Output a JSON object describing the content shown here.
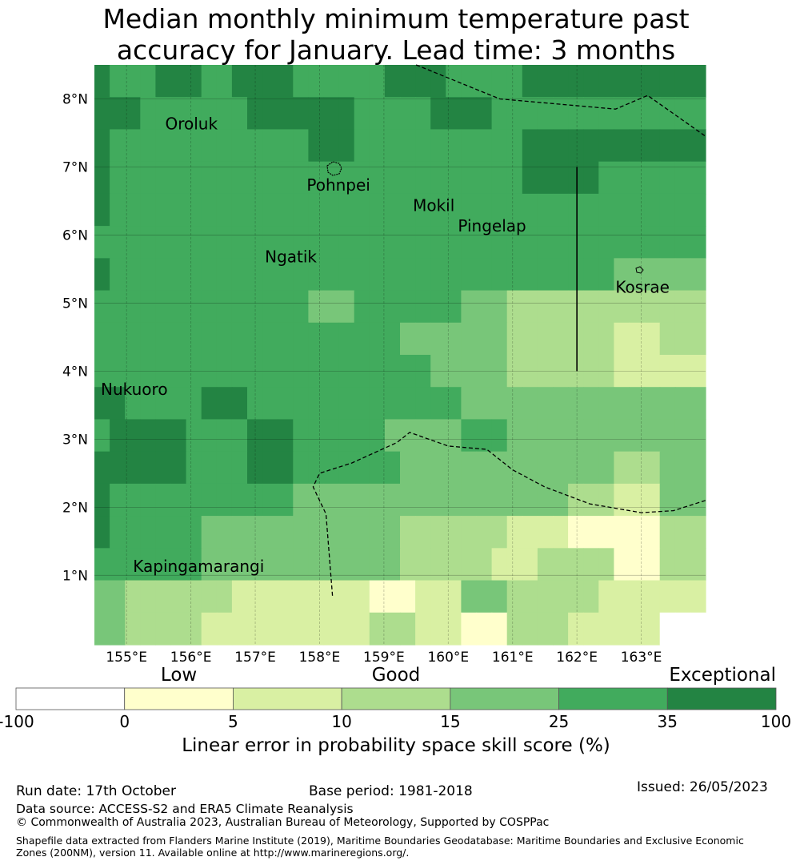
{
  "title": {
    "line1": "Median monthly minimum temperature past",
    "line2": "accuracy for January. Lead time: 3 months"
  },
  "map": {
    "lon_range": [
      154.5,
      164.0
    ],
    "lat_range": [
      -0.02,
      8.5
    ],
    "grid_rows": [
      [
        6,
        5,
        5,
        5,
        6,
        6,
        6,
        5,
        5,
        6,
        6,
        6,
        6,
        5,
        5,
        5,
        5,
        5,
        5,
        6,
        6,
        6,
        6,
        5,
        5,
        5,
        5,
        5,
        6,
        6,
        6,
        6,
        6,
        6,
        6,
        6,
        6,
        6,
        6,
        6
      ],
      [
        6,
        6,
        6,
        5,
        5,
        5,
        5,
        5,
        5,
        5,
        6,
        6,
        6,
        6,
        6,
        6,
        6,
        5,
        5,
        5,
        5,
        5,
        6,
        6,
        6,
        6,
        5,
        5,
        5,
        5,
        5,
        5,
        5,
        5,
        5,
        5,
        5,
        5,
        5,
        5
      ],
      [
        6,
        5,
        5,
        5,
        5,
        5,
        5,
        5,
        5,
        5,
        5,
        5,
        5,
        5,
        6,
        6,
        6,
        5,
        5,
        5,
        5,
        5,
        5,
        5,
        5,
        5,
        5,
        5,
        6,
        6,
        6,
        6,
        6,
        6,
        6,
        6,
        6,
        6,
        6,
        6
      ],
      [
        6,
        5,
        5,
        5,
        5,
        5,
        5,
        5,
        5,
        5,
        5,
        5,
        5,
        5,
        5,
        5,
        5,
        5,
        5,
        5,
        5,
        5,
        5,
        5,
        5,
        5,
        5,
        5,
        6,
        6,
        6,
        6,
        6,
        5,
        5,
        5,
        5,
        5,
        5,
        5
      ],
      [
        6,
        5,
        5,
        5,
        5,
        5,
        5,
        5,
        5,
        5,
        5,
        5,
        5,
        5,
        5,
        5,
        5,
        5,
        5,
        5,
        5,
        5,
        5,
        5,
        5,
        5,
        5,
        5,
        5,
        5,
        5,
        5,
        5,
        5,
        5,
        5,
        5,
        5,
        5,
        5
      ],
      [
        5,
        5,
        5,
        5,
        5,
        5,
        5,
        5,
        5,
        5,
        5,
        5,
        5,
        5,
        5,
        5,
        5,
        5,
        5,
        5,
        5,
        5,
        5,
        5,
        5,
        5,
        5,
        5,
        5,
        5,
        5,
        5,
        5,
        5,
        5,
        5,
        5,
        5,
        5,
        5
      ],
      [
        6,
        5,
        5,
        5,
        5,
        5,
        5,
        5,
        5,
        5,
        5,
        5,
        5,
        5,
        5,
        5,
        5,
        5,
        5,
        5,
        5,
        5,
        5,
        5,
        5,
        5,
        5,
        5,
        5,
        5,
        5,
        5,
        5,
        5,
        4,
        4,
        4,
        4,
        4,
        4
      ],
      [
        5,
        5,
        5,
        5,
        5,
        5,
        5,
        5,
        5,
        5,
        5,
        5,
        5,
        5,
        4,
        4,
        4,
        5,
        5,
        5,
        5,
        5,
        5,
        5,
        4,
        4,
        4,
        3,
        3,
        3,
        3,
        3,
        3,
        3,
        3,
        3,
        3,
        3,
        3,
        3
      ],
      [
        5,
        5,
        5,
        5,
        5,
        5,
        5,
        5,
        5,
        5,
        5,
        5,
        5,
        5,
        5,
        5,
        5,
        5,
        5,
        5,
        4,
        4,
        4,
        4,
        4,
        4,
        4,
        3,
        3,
        3,
        3,
        3,
        3,
        3,
        2,
        2,
        2,
        3,
        3,
        3
      ],
      [
        5,
        5,
        5,
        5,
        5,
        5,
        5,
        5,
        5,
        5,
        5,
        5,
        5,
        5,
        5,
        5,
        5,
        5,
        5,
        5,
        5,
        5,
        4,
        4,
        4,
        4,
        4,
        3,
        3,
        3,
        3,
        3,
        3,
        3,
        2,
        2,
        2,
        2,
        2,
        2
      ],
      [
        6,
        6,
        5,
        5,
        5,
        5,
        5,
        6,
        6,
        6,
        5,
        5,
        5,
        5,
        5,
        5,
        5,
        5,
        5,
        5,
        5,
        5,
        5,
        5,
        4,
        4,
        4,
        4,
        4,
        4,
        4,
        4,
        4,
        4,
        4,
        4,
        4,
        4,
        4,
        4
      ],
      [
        5,
        6,
        6,
        6,
        6,
        6,
        5,
        5,
        5,
        5,
        6,
        6,
        6,
        5,
        5,
        5,
        5,
        5,
        5,
        4,
        4,
        4,
        4,
        4,
        5,
        5,
        5,
        4,
        4,
        4,
        4,
        4,
        4,
        4,
        4,
        4,
        4,
        4,
        4,
        4
      ],
      [
        6,
        6,
        6,
        6,
        6,
        6,
        5,
        5,
        5,
        5,
        6,
        6,
        6,
        5,
        5,
        5,
        5,
        5,
        5,
        5,
        4,
        4,
        4,
        4,
        4,
        4,
        4,
        4,
        4,
        4,
        4,
        4,
        4,
        4,
        3,
        3,
        3,
        4,
        4,
        4
      ],
      [
        6,
        5,
        5,
        5,
        5,
        5,
        5,
        5,
        5,
        5,
        5,
        5,
        5,
        4,
        4,
        4,
        4,
        4,
        4,
        4,
        4,
        4,
        4,
        4,
        4,
        4,
        4,
        4,
        4,
        4,
        4,
        3,
        3,
        3,
        2,
        2,
        2,
        4,
        4,
        4
      ],
      [
        6,
        5,
        5,
        5,
        5,
        5,
        5,
        4,
        4,
        4,
        4,
        4,
        4,
        4,
        4,
        4,
        4,
        4,
        4,
        4,
        3,
        3,
        3,
        3,
        3,
        3,
        3,
        2,
        2,
        2,
        2,
        1,
        1,
        1,
        1,
        1,
        1,
        3,
        3,
        3
      ],
      [
        5,
        5,
        5,
        5,
        5,
        5,
        5,
        4,
        4,
        4,
        4,
        4,
        4,
        4,
        4,
        4,
        4,
        4,
        4,
        4,
        3,
        3,
        3,
        3,
        3,
        3,
        2,
        2,
        2,
        3,
        3,
        3,
        3,
        3,
        1,
        1,
        1,
        3,
        3,
        3
      ],
      [
        4,
        4,
        3,
        3,
        3,
        3,
        3,
        3,
        3,
        2,
        2,
        2,
        2,
        2,
        2,
        2,
        2,
        2,
        1,
        1,
        1,
        2,
        2,
        2,
        4,
        4,
        4,
        3,
        3,
        3,
        3,
        3,
        3,
        2,
        2,
        2,
        2,
        2,
        2,
        2
      ],
      [
        4,
        4,
        3,
        3,
        3,
        3,
        3,
        2,
        2,
        2,
        2,
        2,
        2,
        2,
        2,
        2,
        2,
        2,
        3,
        3,
        3,
        2,
        2,
        2,
        1,
        1,
        1,
        3,
        3,
        3,
        3,
        2,
        2,
        2,
        2,
        2,
        2,
        0,
        0,
        0
      ]
    ],
    "place_labels": [
      {
        "name": "Oroluk",
        "lon": 155.6,
        "lat": 7.55
      },
      {
        "name": "Pohnpei",
        "lon": 157.8,
        "lat": 6.65
      },
      {
        "name": "Mokil",
        "lon": 159.45,
        "lat": 6.35
      },
      {
        "name": "Pingelap",
        "lon": 160.15,
        "lat": 6.05
      },
      {
        "name": "Ngatik",
        "lon": 157.15,
        "lat": 5.6
      },
      {
        "name": "Kosrae",
        "lon": 162.6,
        "lat": 5.15
      },
      {
        "name": "Nukuoro",
        "lon": 154.6,
        "lat": 3.65
      },
      {
        "name": "Kapingamarangi",
        "lon": 155.1,
        "lat": 1.05
      }
    ],
    "x_ticks": [
      "155°E",
      "156°E",
      "157°E",
      "158°E",
      "159°E",
      "160°E",
      "161°E",
      "162°E",
      "163°E"
    ],
    "x_tick_values": [
      155,
      156,
      157,
      158,
      159,
      160,
      161,
      162,
      163
    ],
    "y_ticks": [
      "1°N",
      "2°N",
      "3°N",
      "4°N",
      "5°N",
      "6°N",
      "7°N",
      "8°N"
    ],
    "y_tick_values": [
      1,
      2,
      3,
      4,
      5,
      6,
      7,
      8
    ],
    "eez_boundary_north": [
      [
        159.5,
        8.5
      ],
      [
        160.8,
        8.0
      ],
      [
        162.6,
        7.85
      ],
      [
        163.1,
        8.05
      ],
      [
        164.0,
        7.45
      ]
    ],
    "eez_boundary_south": [
      [
        154.5,
        -0.02
      ],
      [
        158.0,
        -0.02
      ],
      [
        158.2,
        0.7
      ],
      [
        158.1,
        1.9
      ],
      [
        157.9,
        2.3
      ],
      [
        158.0,
        2.5
      ],
      [
        158.5,
        2.65
      ],
      [
        159.2,
        2.95
      ],
      [
        159.4,
        3.1
      ],
      [
        160.0,
        2.9
      ],
      [
        160.6,
        2.85
      ],
      [
        161.0,
        2.55
      ],
      [
        161.5,
        2.3
      ],
      [
        162.2,
        2.05
      ],
      [
        163.0,
        1.92
      ],
      [
        163.5,
        1.95
      ],
      [
        164.0,
        2.1
      ]
    ],
    "vertical_line_lon": 162.0,
    "vertical_line_lat": [
      4.0,
      7.0
    ]
  },
  "colorbar": {
    "categories": [
      {
        "word": "Low",
        "under_index": 1
      },
      {
        "word": "Good",
        "under_index": 3
      },
      {
        "word": "Exceptional",
        "under_index": 6
      }
    ],
    "colors": [
      "#ffffff",
      "#ffffcc",
      "#d9f0a3",
      "#addd8e",
      "#78c679",
      "#41ab5d",
      "#238443"
    ],
    "ticks": [
      "-100",
      "0",
      "5",
      "10",
      "15",
      "25",
      "35",
      "100"
    ],
    "label": "Linear error in probability space skill score (%)"
  },
  "footer": {
    "run_date": "Run date: 17th October",
    "base_period": "Base period: 1981-2018",
    "issued": "Issued: 26/05/2023",
    "data_source": "Data source: ACCESS-S2 and ERA5 Climate Reanalysis",
    "copyright": "© Commonwealth of Australia 2023, Australian Bureau of Meteorology, Supported by COSPPac",
    "shapefile": "Shapefile data extracted from Flanders Marine Institute (2019), Maritime Boundaries Geodatabase: Maritime Boundaries and Exclusive Economic Zones (200NM), version 11. Available online at http://www.marineregions.org/."
  }
}
